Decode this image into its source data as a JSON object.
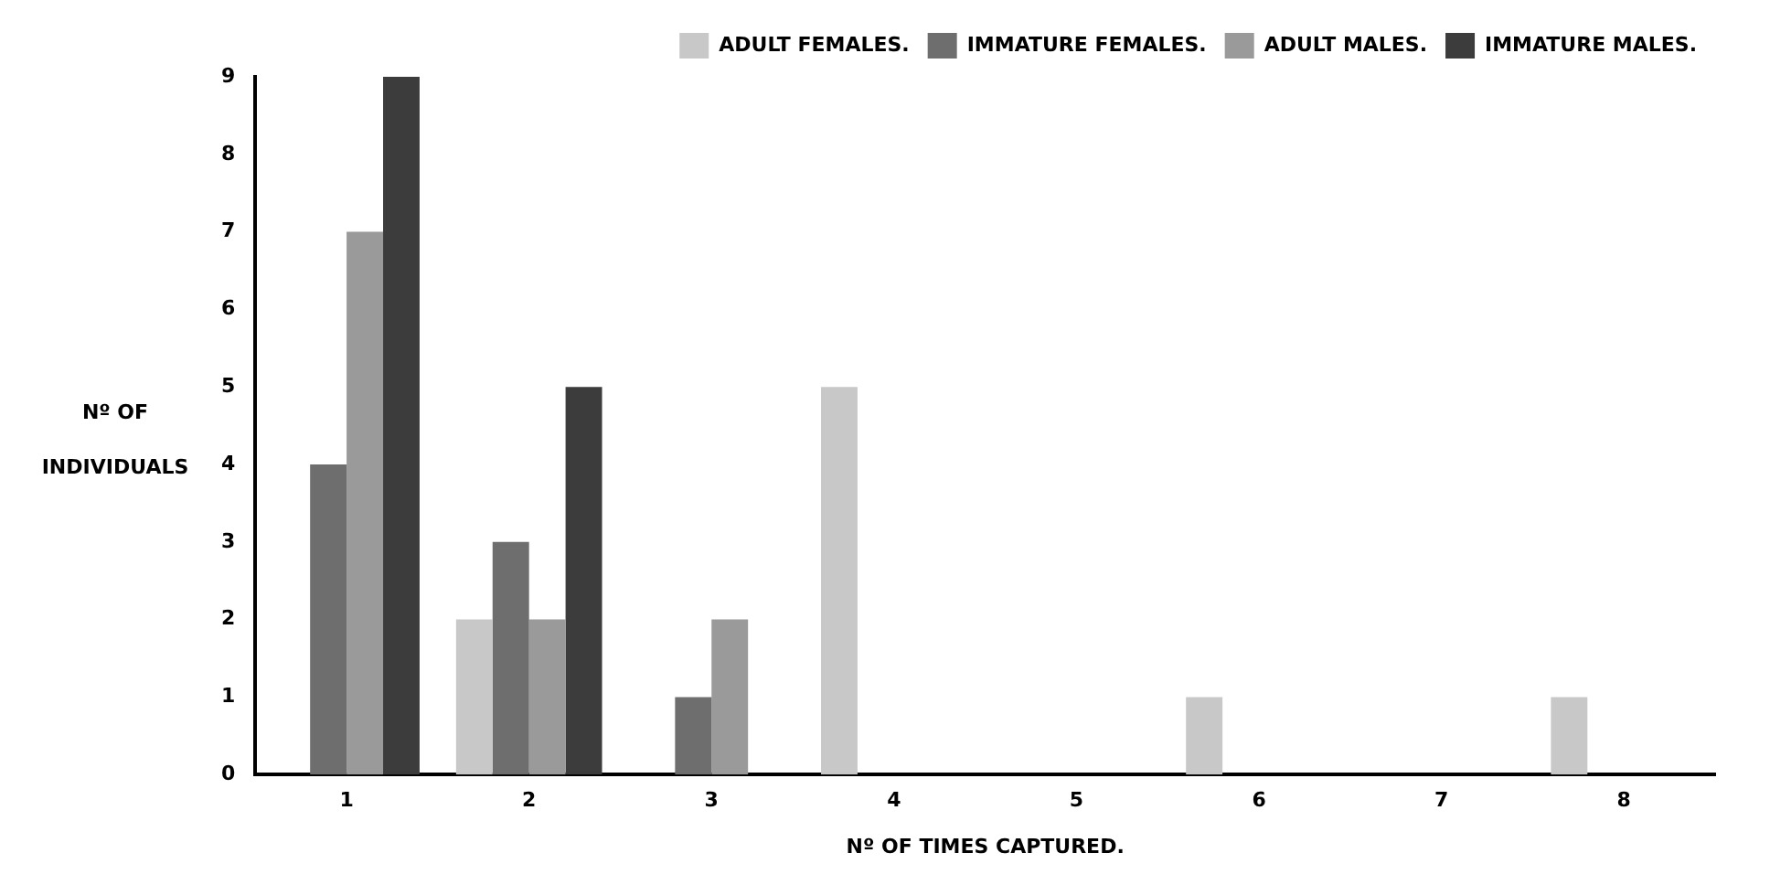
{
  "chart_data": {
    "type": "bar",
    "xlabel": "Nº OF TIMES CAPTURED.",
    "ylabel": "Nº OF INDIVIDUALS",
    "categories": [
      "1",
      "2",
      "3",
      "4",
      "5",
      "6",
      "7",
      "8"
    ],
    "series": [
      {
        "name": "ADULT FEMALES.",
        "color": "#c8c8c8",
        "values": [
          0,
          2,
          0,
          5,
          0,
          1,
          0,
          1
        ]
      },
      {
        "name": "IMMATURE FEMALES.",
        "color": "#6e6e6e",
        "values": [
          4,
          3,
          1,
          0,
          0,
          0,
          0,
          0
        ]
      },
      {
        "name": "ADULT MALES.",
        "color": "#9a9a9a",
        "values": [
          7,
          2,
          2,
          0,
          0,
          0,
          0,
          0
        ]
      },
      {
        "name": "IMMATURE MALES.",
        "color": "#3c3c3c",
        "values": [
          9,
          5,
          0,
          0,
          0,
          0,
          0,
          0
        ]
      }
    ],
    "ylim": [
      0,
      9
    ],
    "yticks": [
      0,
      1,
      2,
      3,
      4,
      5,
      6,
      7,
      8,
      9
    ],
    "grid": false,
    "legend": "top right"
  }
}
